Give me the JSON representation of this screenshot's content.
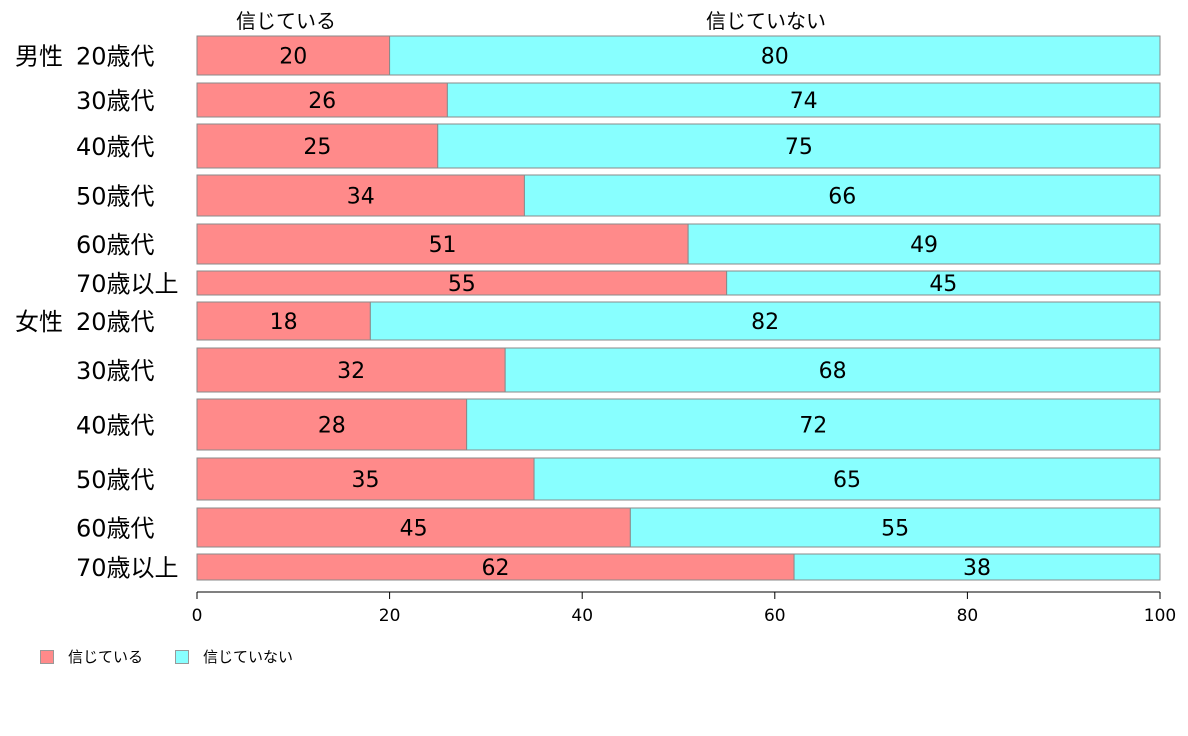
{
  "chart_data": {
    "type": "bar",
    "orientation": "horizontal",
    "stacked": "percent",
    "header_labels": [
      "信じている",
      "信じていない"
    ],
    "rows": [
      {
        "group": "男性",
        "category": "20歳代",
        "values": [
          20,
          80
        ]
      },
      {
        "group": "",
        "category": "30歳代",
        "values": [
          26,
          74
        ]
      },
      {
        "group": "",
        "category": "40歳代",
        "values": [
          25,
          75
        ]
      },
      {
        "group": "",
        "category": "50歳代",
        "values": [
          34,
          66
        ]
      },
      {
        "group": "",
        "category": "60歳代",
        "values": [
          51,
          49
        ]
      },
      {
        "group": "",
        "category": "70歳以上",
        "values": [
          55,
          45
        ]
      },
      {
        "group": "女性",
        "category": "20歳代",
        "values": [
          18,
          82
        ]
      },
      {
        "group": "",
        "category": "30歳代",
        "values": [
          32,
          68
        ]
      },
      {
        "group": "",
        "category": "40歳代",
        "values": [
          28,
          72
        ]
      },
      {
        "group": "",
        "category": "50歳代",
        "values": [
          35,
          65
        ]
      },
      {
        "group": "",
        "category": "60歳代",
        "values": [
          45,
          55
        ]
      },
      {
        "group": "",
        "category": "70歳以上",
        "values": [
          62,
          38
        ]
      }
    ],
    "series": [
      {
        "name": "信じている",
        "color": "#ff8a8a"
      },
      {
        "name": "信じていない",
        "color": "#88ffff"
      }
    ],
    "xlim": [
      0,
      100
    ],
    "xticks": [
      "0",
      "20",
      "40",
      "60",
      "80",
      "100"
    ],
    "grid": false,
    "legend_position": "bottom-left"
  }
}
